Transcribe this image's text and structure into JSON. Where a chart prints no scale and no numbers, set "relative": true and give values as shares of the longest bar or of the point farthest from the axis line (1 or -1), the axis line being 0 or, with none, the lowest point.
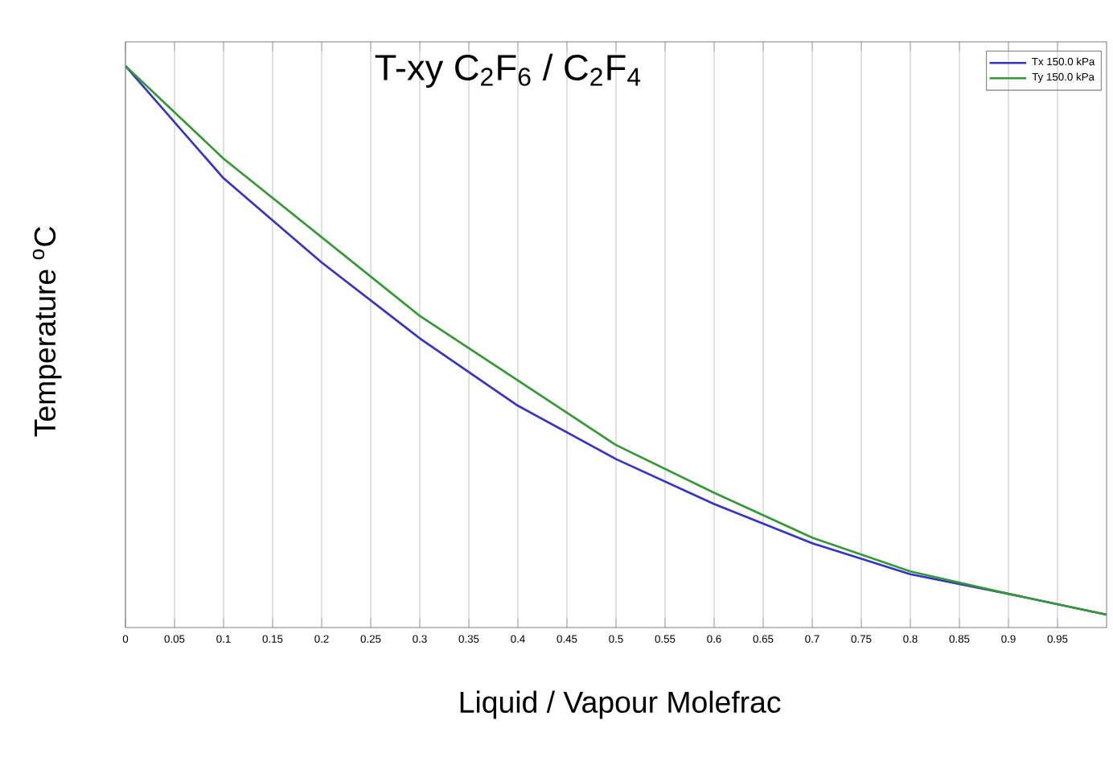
{
  "chart_data": {
    "type": "line",
    "title": "T-xy C$_{2}$F$_{6}$ / C$_{2}$F$_{4}$",
    "xlabel": "Liquid / Vapour Molefrac",
    "ylabel": "Temperature $^{o}$C",
    "relative": true,
    "xlim": [
      0,
      1
    ],
    "xticks": [
      0,
      0.05,
      0.1,
      0.15,
      0.2,
      0.25,
      0.3,
      0.35,
      0.4,
      0.45,
      0.5,
      0.55,
      0.6,
      0.65,
      0.7,
      0.75,
      0.8,
      0.85,
      0.9,
      0.95
    ],
    "x": [
      0,
      0.1,
      0.2,
      0.3,
      0.4,
      0.5,
      0.6,
      0.7,
      0.8,
      0.9,
      1.0
    ],
    "series": [
      {
        "name": "Tx 150.0 kPa",
        "color": "#3333cc",
        "values": [
          1,
          0.8,
          0.65,
          0.515,
          0.395,
          0.3,
          0.22,
          0.15,
          0.095,
          0.06,
          0.023
        ]
      },
      {
        "name": "Ty 150.0 kPa",
        "color": "#339933",
        "values": [
          1,
          0.835,
          0.695,
          0.555,
          0.44,
          0.325,
          0.24,
          0.16,
          0.1,
          0.06,
          0.023
        ]
      }
    ],
    "grid": "x",
    "legend": "top right",
    "tick_labels": "x",
    "marker": "none",
    "line_style": "solid"
  }
}
